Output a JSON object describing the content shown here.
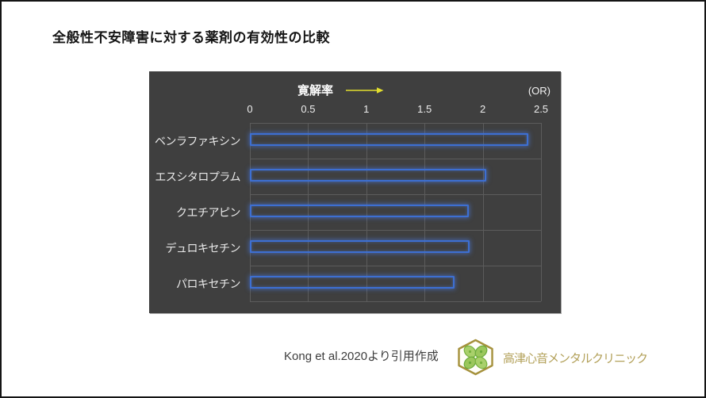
{
  "page": {
    "title": "全般性不安障害に対する薬剤の有効性の比較"
  },
  "chart": {
    "header_label": "寛解率",
    "unit_label": "(OR)"
  },
  "chart_data": {
    "type": "bar",
    "orientation": "horizontal",
    "title": "全般性不安障害に対する薬剤の有効性の比較",
    "xlabel": "寛解率 (OR)",
    "ylabel": "",
    "categories": [
      "ベンラファキシン",
      "エスシタロプラム",
      "クエチアピン",
      "デュロキセチン",
      "パロキセチン"
    ],
    "values": [
      2.39,
      2.03,
      1.88,
      1.89,
      1.76
    ],
    "xlim": [
      0,
      2.5
    ],
    "xticks": [
      0,
      0.5,
      1,
      1.5,
      2,
      2.5
    ],
    "grid": true,
    "legend": false,
    "bar_style": "outlined",
    "annotation_arrow": "right"
  },
  "footer": {
    "citation": "Kong et al.2020より引用作成",
    "clinic_name": "高津心音メンタルクリニック"
  },
  "colors": {
    "panel_background": "#3f3f3f",
    "gridline": "#5c5c5c",
    "bar_border_blue": "#3d6fd2",
    "bar_glow_blue": "#4d82f0",
    "axis_text": "#ededed",
    "arrow_yellow": "#e3df2e",
    "logo_hexagon_gold": "#a5913c",
    "logo_clover_green": "#8bbf45",
    "clinic_text_gold": "#b3a15a",
    "title_text": "#151515"
  }
}
